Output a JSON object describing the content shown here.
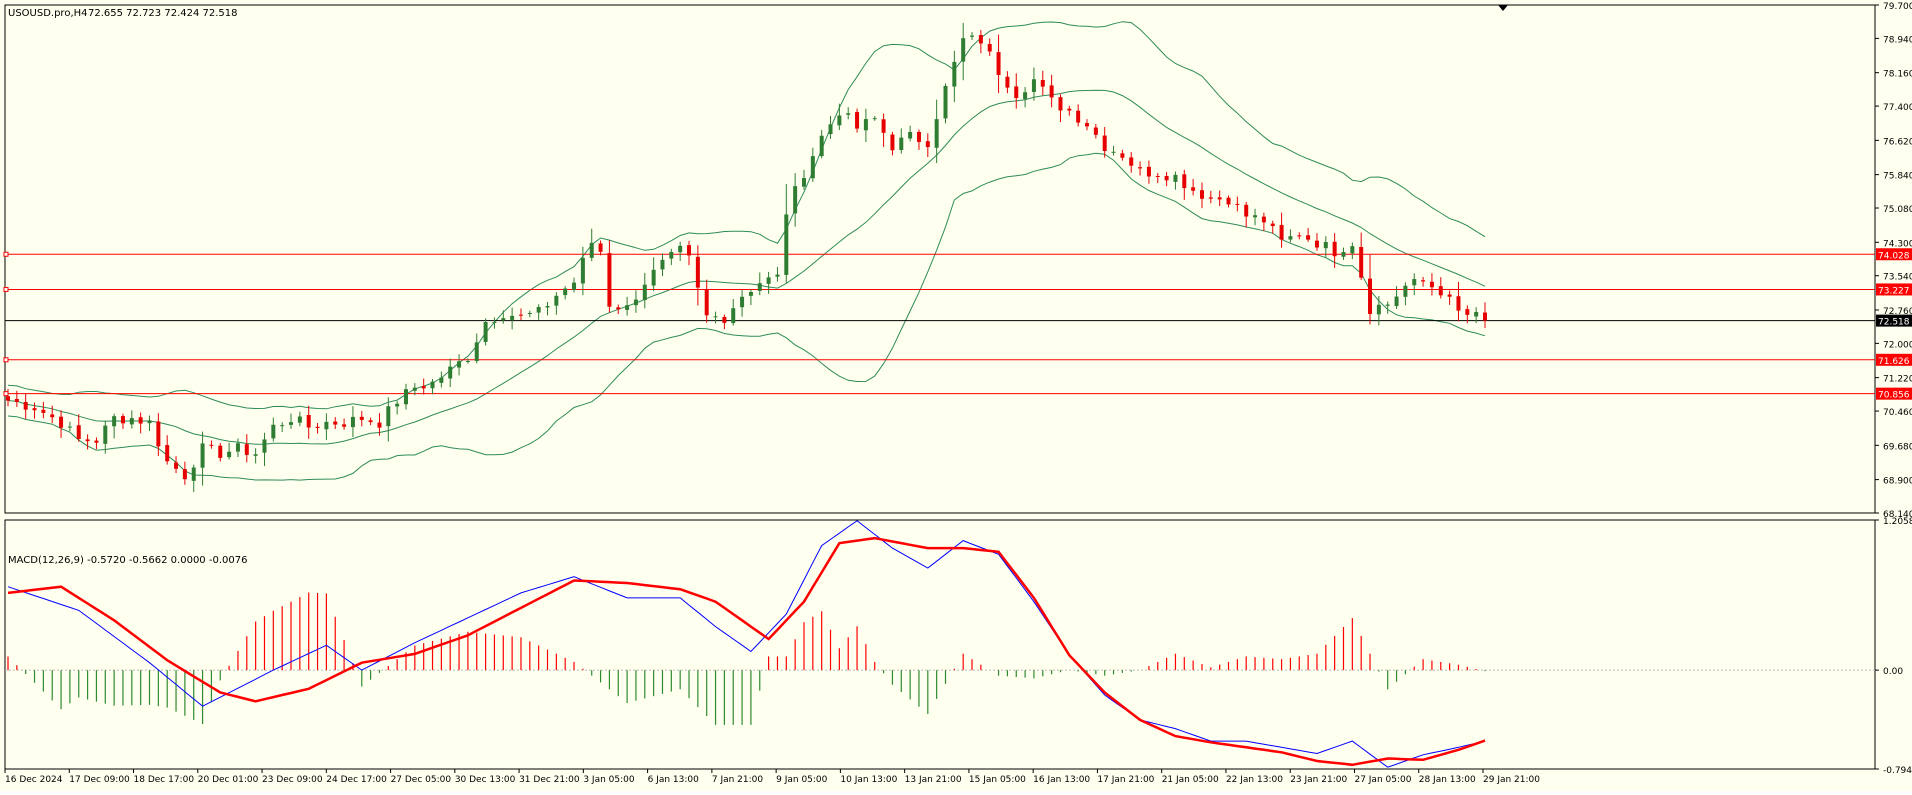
{
  "colors": {
    "background": "#fffff0",
    "border": "#000000",
    "candle_up": "#2e7d32",
    "candle_down": "#e60000",
    "bands": "#2e8b57",
    "level_line": "#ff0000",
    "price_line": "#000000",
    "macd_main": "#0000ff",
    "macd_signal": "#ff0000",
    "hist_pos": "#ff0000",
    "hist_neg": "#2e8b2e",
    "label_bg_red": "#ff0000",
    "label_bg_black": "#000000"
  },
  "chart_data": [
    {
      "type": "candlestick",
      "title": "USOUSD.pro,H4",
      "ohlc_text": "72.655 72.723 72.424 72.518",
      "ylim": [
        68.14,
        79.7
      ],
      "y_ticks": [
        "79.700",
        "78.940",
        "78.160",
        "77.400",
        "76.620",
        "75.840",
        "75.080",
        "74.300",
        "73.540",
        "72.760",
        "72.000",
        "71.220",
        "70.460",
        "69.680",
        "68.900",
        "68.140"
      ],
      "x_tick_labels": [
        "16 Dec 2024",
        "17 Dec 09:00",
        "18 Dec 17:00",
        "20 Dec 01:00",
        "23 Dec 09:00",
        "24 Dec 17:00",
        "27 Dec 05:00",
        "30 Dec 13:00",
        "31 Dec 21:00",
        "3 Jan 05:00",
        "6 Jan 13:00",
        "7 Jan 21:00",
        "9 Jan 05:00",
        "10 Jan 13:00",
        "13 Jan 21:00",
        "15 Jan 05:00",
        "16 Jan 13:00",
        "17 Jan 21:00",
        "21 Jan 05:00",
        "22 Jan 13:00",
        "23 Jan 21:00",
        "27 Jan 05:00",
        "28 Jan 13:00",
        "29 Jan 21:00"
      ],
      "close_anchors": [
        [
          0,
          70.7
        ],
        [
          3,
          70.55
        ],
        [
          6,
          70.2
        ],
        [
          8,
          69.8
        ],
        [
          10,
          69.8
        ],
        [
          12,
          70.3
        ],
        [
          14,
          70.3
        ],
        [
          16,
          70.2
        ],
        [
          18,
          69.3
        ],
        [
          20,
          69.0
        ],
        [
          22,
          69.6
        ],
        [
          24,
          69.5
        ],
        [
          26,
          69.6
        ],
        [
          28,
          69.5
        ],
        [
          30,
          70.1
        ],
        [
          32,
          70.3
        ],
        [
          34,
          70.1
        ],
        [
          36,
          70.2
        ],
        [
          38,
          70.2
        ],
        [
          40,
          70.3
        ],
        [
          42,
          70.2
        ],
        [
          44,
          70.7
        ],
        [
          46,
          71.0
        ],
        [
          48,
          71.1
        ],
        [
          50,
          71.4
        ],
        [
          52,
          71.7
        ],
        [
          54,
          72.5
        ],
        [
          56,
          72.7
        ],
        [
          58,
          72.6
        ],
        [
          60,
          72.7
        ],
        [
          62,
          73.1
        ],
        [
          64,
          73.4
        ],
        [
          66,
          74.3
        ],
        [
          67,
          74.1
        ],
        [
          68,
          72.9
        ],
        [
          70,
          72.8
        ],
        [
          72,
          73.4
        ],
        [
          74,
          73.8
        ],
        [
          76,
          74.1
        ],
        [
          77,
          73.9
        ],
        [
          78,
          73.2
        ],
        [
          79,
          72.6
        ],
        [
          81,
          72.6
        ],
        [
          83,
          73.1
        ],
        [
          85,
          73.4
        ],
        [
          87,
          73.5
        ],
        [
          88,
          75.0
        ],
        [
          90,
          75.9
        ],
        [
          92,
          76.7
        ],
        [
          94,
          77.3
        ],
        [
          96,
          76.9
        ],
        [
          98,
          77.1
        ],
        [
          100,
          76.5
        ],
        [
          102,
          76.7
        ],
        [
          104,
          76.6
        ],
        [
          106,
          77.8
        ],
        [
          108,
          78.9
        ],
        [
          110,
          78.9
        ],
        [
          112,
          78.2
        ],
        [
          114,
          77.7
        ],
        [
          116,
          78.0
        ],
        [
          118,
          77.5
        ],
        [
          120,
          77.3
        ],
        [
          122,
          77.0
        ],
        [
          124,
          76.5
        ],
        [
          126,
          76.3
        ],
        [
          128,
          75.9
        ],
        [
          130,
          75.9
        ],
        [
          132,
          75.8
        ],
        [
          134,
          75.5
        ],
        [
          136,
          75.3
        ],
        [
          138,
          75.3
        ],
        [
          140,
          74.9
        ],
        [
          142,
          74.8
        ],
        [
          144,
          74.3
        ],
        [
          146,
          74.5
        ],
        [
          148,
          74.3
        ],
        [
          150,
          74.1
        ],
        [
          152,
          74.3
        ],
        [
          154,
          72.8
        ],
        [
          156,
          72.9
        ],
        [
          158,
          73.3
        ],
        [
          160,
          73.4
        ],
        [
          162,
          73.2
        ],
        [
          164,
          72.7
        ],
        [
          166,
          72.6
        ],
        [
          167,
          72.518
        ]
      ],
      "levels": [
        74.028,
        73.227,
        71.626,
        70.856
      ],
      "current_price": 72.518,
      "level_labels": [
        "74.028",
        "73.227",
        "71.626",
        "70.856"
      ],
      "current_label": "72.518"
    },
    {
      "type": "macd",
      "title": "MACD(12,26,9) -0.5720 -0.5662 0.0000 -0.0076",
      "ylim": [
        -0.7941,
        1.2058
      ],
      "y_ticks": [
        "1.2058",
        "0.00",
        "-0.7941"
      ],
      "main_anchors": [
        [
          0,
          0.67
        ],
        [
          8,
          0.48
        ],
        [
          16,
          0.06
        ],
        [
          22,
          -0.29
        ],
        [
          30,
          0.0
        ],
        [
          36,
          0.2
        ],
        [
          40,
          0.0
        ],
        [
          46,
          0.22
        ],
        [
          52,
          0.42
        ],
        [
          58,
          0.62
        ],
        [
          64,
          0.75
        ],
        [
          70,
          0.58
        ],
        [
          76,
          0.58
        ],
        [
          80,
          0.35
        ],
        [
          84,
          0.15
        ],
        [
          88,
          0.45
        ],
        [
          92,
          1.0
        ],
        [
          96,
          1.2
        ],
        [
          100,
          0.98
        ],
        [
          104,
          0.82
        ],
        [
          108,
          1.04
        ],
        [
          112,
          0.93
        ],
        [
          116,
          0.55
        ],
        [
          120,
          0.12
        ],
        [
          124,
          -0.2
        ],
        [
          128,
          -0.4
        ],
        [
          132,
          -0.47
        ],
        [
          136,
          -0.57
        ],
        [
          140,
          -0.57
        ],
        [
          144,
          -0.62
        ],
        [
          148,
          -0.67
        ],
        [
          152,
          -0.57
        ],
        [
          156,
          -0.78
        ],
        [
          160,
          -0.68
        ],
        [
          164,
          -0.62
        ],
        [
          167,
          -0.57
        ]
      ],
      "signal_anchors": [
        [
          0,
          0.62
        ],
        [
          6,
          0.67
        ],
        [
          12,
          0.4
        ],
        [
          18,
          0.08
        ],
        [
          24,
          -0.18
        ],
        [
          28,
          -0.25
        ],
        [
          34,
          -0.15
        ],
        [
          40,
          0.06
        ],
        [
          46,
          0.13
        ],
        [
          52,
          0.28
        ],
        [
          58,
          0.5
        ],
        [
          64,
          0.72
        ],
        [
          70,
          0.7
        ],
        [
          76,
          0.65
        ],
        [
          80,
          0.55
        ],
        [
          86,
          0.25
        ],
        [
          90,
          0.55
        ],
        [
          94,
          1.02
        ],
        [
          98,
          1.06
        ],
        [
          104,
          0.98
        ],
        [
          108,
          0.98
        ],
        [
          112,
          0.95
        ],
        [
          116,
          0.58
        ],
        [
          120,
          0.12
        ],
        [
          124,
          -0.18
        ],
        [
          128,
          -0.4
        ],
        [
          132,
          -0.53
        ],
        [
          136,
          -0.58
        ],
        [
          140,
          -0.62
        ],
        [
          144,
          -0.66
        ],
        [
          148,
          -0.73
        ],
        [
          152,
          -0.76
        ],
        [
          156,
          -0.71
        ],
        [
          160,
          -0.72
        ],
        [
          164,
          -0.64
        ],
        [
          167,
          -0.5662
        ]
      ]
    }
  ]
}
